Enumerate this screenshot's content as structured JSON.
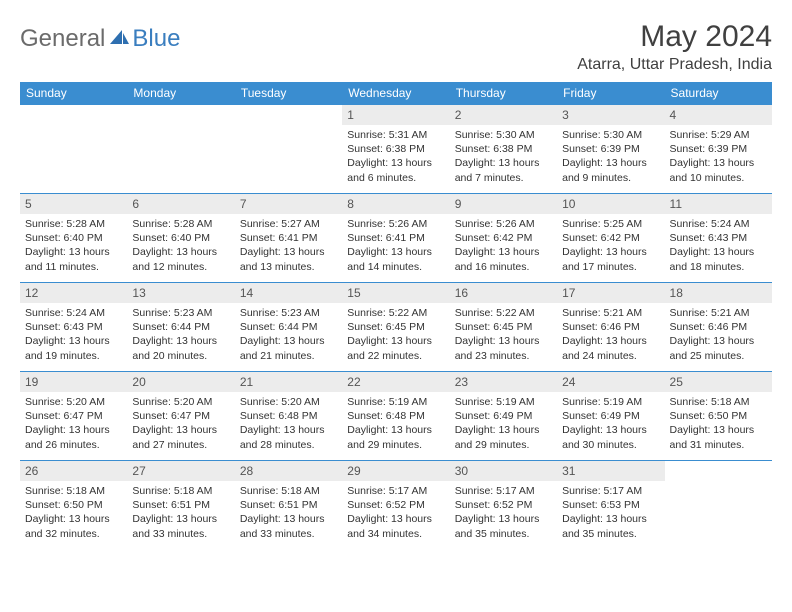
{
  "brand": {
    "part1": "General",
    "part2": "Blue"
  },
  "title": "May 2024",
  "location": "Atarra, Uttar Pradesh, India",
  "colors": {
    "header_bg": "#3a8dd0",
    "header_text": "#ffffff",
    "daynum_bg": "#ececec",
    "cell_border": "#3a8dd0",
    "logo_gray": "#6b6b6b",
    "logo_blue": "#3a7ebf"
  },
  "daysOfWeek": [
    "Sunday",
    "Monday",
    "Tuesday",
    "Wednesday",
    "Thursday",
    "Friday",
    "Saturday"
  ],
  "weeks": [
    [
      null,
      null,
      null,
      {
        "n": "1",
        "sr": "5:31 AM",
        "ss": "6:38 PM",
        "dl": "13 hours and 6 minutes."
      },
      {
        "n": "2",
        "sr": "5:30 AM",
        "ss": "6:38 PM",
        "dl": "13 hours and 7 minutes."
      },
      {
        "n": "3",
        "sr": "5:30 AM",
        "ss": "6:39 PM",
        "dl": "13 hours and 9 minutes."
      },
      {
        "n": "4",
        "sr": "5:29 AM",
        "ss": "6:39 PM",
        "dl": "13 hours and 10 minutes."
      }
    ],
    [
      {
        "n": "5",
        "sr": "5:28 AM",
        "ss": "6:40 PM",
        "dl": "13 hours and 11 minutes."
      },
      {
        "n": "6",
        "sr": "5:28 AM",
        "ss": "6:40 PM",
        "dl": "13 hours and 12 minutes."
      },
      {
        "n": "7",
        "sr": "5:27 AM",
        "ss": "6:41 PM",
        "dl": "13 hours and 13 minutes."
      },
      {
        "n": "8",
        "sr": "5:26 AM",
        "ss": "6:41 PM",
        "dl": "13 hours and 14 minutes."
      },
      {
        "n": "9",
        "sr": "5:26 AM",
        "ss": "6:42 PM",
        "dl": "13 hours and 16 minutes."
      },
      {
        "n": "10",
        "sr": "5:25 AM",
        "ss": "6:42 PM",
        "dl": "13 hours and 17 minutes."
      },
      {
        "n": "11",
        "sr": "5:24 AM",
        "ss": "6:43 PM",
        "dl": "13 hours and 18 minutes."
      }
    ],
    [
      {
        "n": "12",
        "sr": "5:24 AM",
        "ss": "6:43 PM",
        "dl": "13 hours and 19 minutes."
      },
      {
        "n": "13",
        "sr": "5:23 AM",
        "ss": "6:44 PM",
        "dl": "13 hours and 20 minutes."
      },
      {
        "n": "14",
        "sr": "5:23 AM",
        "ss": "6:44 PM",
        "dl": "13 hours and 21 minutes."
      },
      {
        "n": "15",
        "sr": "5:22 AM",
        "ss": "6:45 PM",
        "dl": "13 hours and 22 minutes."
      },
      {
        "n": "16",
        "sr": "5:22 AM",
        "ss": "6:45 PM",
        "dl": "13 hours and 23 minutes."
      },
      {
        "n": "17",
        "sr": "5:21 AM",
        "ss": "6:46 PM",
        "dl": "13 hours and 24 minutes."
      },
      {
        "n": "18",
        "sr": "5:21 AM",
        "ss": "6:46 PM",
        "dl": "13 hours and 25 minutes."
      }
    ],
    [
      {
        "n": "19",
        "sr": "5:20 AM",
        "ss": "6:47 PM",
        "dl": "13 hours and 26 minutes."
      },
      {
        "n": "20",
        "sr": "5:20 AM",
        "ss": "6:47 PM",
        "dl": "13 hours and 27 minutes."
      },
      {
        "n": "21",
        "sr": "5:20 AM",
        "ss": "6:48 PM",
        "dl": "13 hours and 28 minutes."
      },
      {
        "n": "22",
        "sr": "5:19 AM",
        "ss": "6:48 PM",
        "dl": "13 hours and 29 minutes."
      },
      {
        "n": "23",
        "sr": "5:19 AM",
        "ss": "6:49 PM",
        "dl": "13 hours and 29 minutes."
      },
      {
        "n": "24",
        "sr": "5:19 AM",
        "ss": "6:49 PM",
        "dl": "13 hours and 30 minutes."
      },
      {
        "n": "25",
        "sr": "5:18 AM",
        "ss": "6:50 PM",
        "dl": "13 hours and 31 minutes."
      }
    ],
    [
      {
        "n": "26",
        "sr": "5:18 AM",
        "ss": "6:50 PM",
        "dl": "13 hours and 32 minutes."
      },
      {
        "n": "27",
        "sr": "5:18 AM",
        "ss": "6:51 PM",
        "dl": "13 hours and 33 minutes."
      },
      {
        "n": "28",
        "sr": "5:18 AM",
        "ss": "6:51 PM",
        "dl": "13 hours and 33 minutes."
      },
      {
        "n": "29",
        "sr": "5:17 AM",
        "ss": "6:52 PM",
        "dl": "13 hours and 34 minutes."
      },
      {
        "n": "30",
        "sr": "5:17 AM",
        "ss": "6:52 PM",
        "dl": "13 hours and 35 minutes."
      },
      {
        "n": "31",
        "sr": "5:17 AM",
        "ss": "6:53 PM",
        "dl": "13 hours and 35 minutes."
      },
      null
    ]
  ],
  "labels": {
    "sunrise": "Sunrise: ",
    "sunset": "Sunset: ",
    "daylight": "Daylight: "
  }
}
